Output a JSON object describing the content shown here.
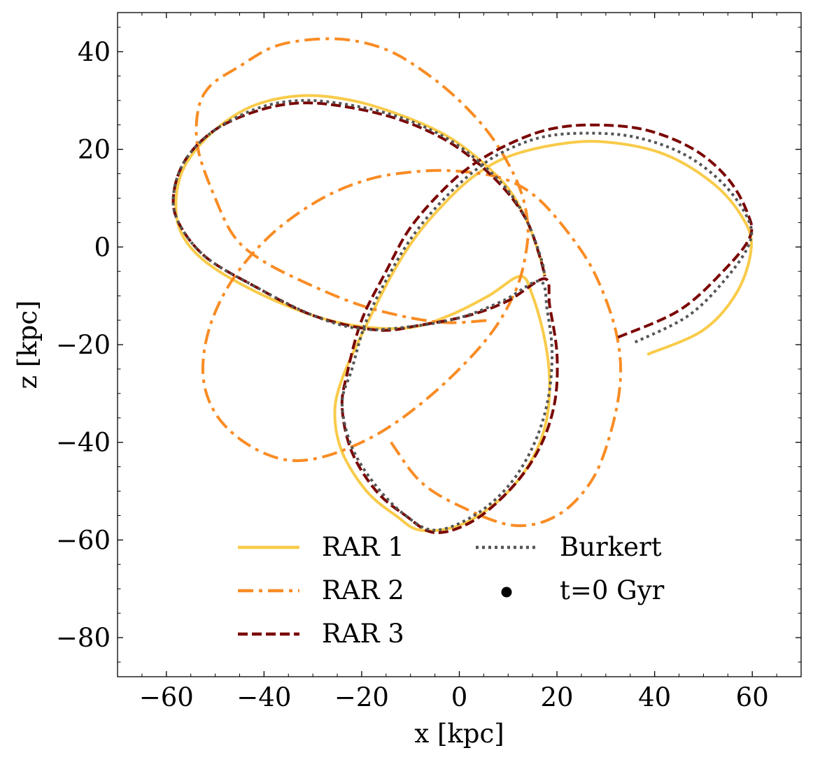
{
  "chart_data": {
    "type": "line",
    "xlabel": "x [kpc]",
    "ylabel": "z [kpc]",
    "xlim": [
      -70,
      70
    ],
    "ylim": [
      -88,
      48
    ],
    "xticks": [
      -60,
      -40,
      -20,
      0,
      20,
      40,
      60
    ],
    "xtick_labels": [
      "−60",
      "−40",
      "−20",
      "0",
      "20",
      "40",
      "60"
    ],
    "yticks": [
      -80,
      -60,
      -40,
      -20,
      0,
      20,
      40
    ],
    "ytick_labels": [
      "−80",
      "−60",
      "−40",
      "−20",
      "0",
      "20",
      "40"
    ],
    "grid": false,
    "legend_placement": "bottom-center, two columns",
    "series": [
      {
        "name": "RAR 1",
        "color": "#F9CB4A",
        "dash": "solid",
        "points": [
          [
            38.5,
            -22.0
          ],
          [
            50,
            -17
          ],
          [
            57,
            -9
          ],
          [
            59.8,
            0
          ],
          [
            58,
            6
          ],
          [
            52,
            13
          ],
          [
            42,
            19
          ],
          [
            30,
            21.5
          ],
          [
            20,
            21
          ],
          [
            10,
            18.5
          ],
          [
            3,
            14.5
          ],
          [
            -3,
            9
          ],
          [
            -9,
            2
          ],
          [
            -14,
            -6
          ],
          [
            -20,
            -18
          ],
          [
            -24,
            -27
          ],
          [
            -25.5,
            -34
          ],
          [
            -24,
            -42
          ],
          [
            -19,
            -50
          ],
          [
            -13,
            -55
          ],
          [
            -8,
            -58
          ],
          [
            0,
            -57
          ],
          [
            8,
            -52
          ],
          [
            14,
            -45
          ],
          [
            17.5,
            -37
          ],
          [
            18.5,
            -28
          ],
          [
            17.5,
            -19
          ],
          [
            15,
            -10
          ],
          [
            12.5,
            -6
          ],
          [
            6,
            -10
          ],
          [
            -2,
            -14
          ],
          [
            -10,
            -16.5
          ],
          [
            -20,
            -16.3
          ],
          [
            -30,
            -14
          ],
          [
            -42,
            -9
          ],
          [
            -52,
            -3
          ],
          [
            -57,
            3
          ],
          [
            -58,
            10
          ],
          [
            -56,
            17
          ],
          [
            -50,
            24
          ],
          [
            -42,
            29
          ],
          [
            -32,
            31
          ],
          [
            -22,
            30
          ],
          [
            -12,
            27
          ],
          [
            -3,
            23
          ],
          [
            4,
            18
          ],
          [
            10,
            12
          ],
          [
            14,
            5
          ],
          [
            16.8,
            -3
          ],
          [
            17.5,
            -6
          ]
        ]
      },
      {
        "name": "RAR 2",
        "color": "#F98C24",
        "dash": "22 8 5 8",
        "points": [
          [
            -14,
            -40
          ],
          [
            -8,
            -48
          ],
          [
            0,
            -53
          ],
          [
            11,
            -57
          ],
          [
            20,
            -55
          ],
          [
            27,
            -48
          ],
          [
            31,
            -38
          ],
          [
            33,
            -27
          ],
          [
            32,
            -17
          ],
          [
            28,
            -6
          ],
          [
            23,
            2
          ],
          [
            16,
            10
          ],
          [
            9,
            14
          ],
          [
            0,
            15.5
          ],
          [
            -8,
            15.5
          ],
          [
            -18,
            14
          ],
          [
            -28,
            10
          ],
          [
            -38,
            3
          ],
          [
            -46,
            -6
          ],
          [
            -51,
            -16
          ],
          [
            -52.5,
            -26
          ],
          [
            -50,
            -34
          ],
          [
            -44,
            -40
          ],
          [
            -36,
            -43.5
          ],
          [
            -28,
            -43
          ],
          [
            -18,
            -39
          ],
          [
            -9,
            -33
          ],
          [
            0,
            -25
          ],
          [
            7,
            -17
          ],
          [
            11.5,
            -9
          ],
          [
            13.5,
            -2
          ],
          [
            14,
            5
          ],
          [
            12,
            13
          ],
          [
            7,
            22
          ],
          [
            1,
            29
          ],
          [
            -6,
            35
          ],
          [
            -14,
            40
          ],
          [
            -22,
            42.3
          ],
          [
            -30,
            42.5
          ],
          [
            -38,
            41
          ],
          [
            -45,
            37
          ],
          [
            -51,
            33
          ],
          [
            -53.5,
            28
          ],
          [
            -53.5,
            20
          ],
          [
            -50,
            10
          ],
          [
            -46,
            2
          ],
          [
            -40,
            -3
          ],
          [
            -30,
            -8
          ],
          [
            -20,
            -12
          ],
          [
            -10,
            -14.5
          ],
          [
            -2,
            -15.5
          ],
          [
            6,
            -15
          ]
        ]
      },
      {
        "name": "RAR 3",
        "color": "#7A0604",
        "dash": "14 6",
        "points": [
          [
            32.5,
            -18.5
          ],
          [
            45,
            -13
          ],
          [
            54,
            -5
          ],
          [
            59.5,
            2
          ],
          [
            59,
            7
          ],
          [
            55,
            14
          ],
          [
            48,
            20
          ],
          [
            38,
            24
          ],
          [
            27,
            25
          ],
          [
            18,
            24
          ],
          [
            10,
            21
          ],
          [
            3,
            17
          ],
          [
            -3,
            12
          ],
          [
            -10,
            4
          ],
          [
            -15,
            -5
          ],
          [
            -20,
            -15
          ],
          [
            -23,
            -26
          ],
          [
            -24,
            -33
          ],
          [
            -22,
            -42
          ],
          [
            -17,
            -50
          ],
          [
            -11,
            -55
          ],
          [
            -5,
            -58.5
          ],
          [
            3,
            -56
          ],
          [
            11,
            -49
          ],
          [
            16.5,
            -41
          ],
          [
            19.5,
            -32
          ],
          [
            20,
            -22
          ],
          [
            18.5,
            -12
          ],
          [
            17.5,
            -6.5
          ],
          [
            10,
            -11
          ],
          [
            2,
            -14
          ],
          [
            -8,
            -16
          ],
          [
            -17,
            -17
          ],
          [
            -30,
            -14
          ],
          [
            -42,
            -8
          ],
          [
            -52,
            -2
          ],
          [
            -57.5,
            5
          ],
          [
            -58.5,
            11
          ],
          [
            -56,
            18
          ],
          [
            -50,
            24
          ],
          [
            -41,
            28
          ],
          [
            -32,
            29.5
          ],
          [
            -22,
            28.5
          ],
          [
            -12,
            26
          ],
          [
            -3,
            22
          ],
          [
            4,
            17
          ],
          [
            10,
            11
          ],
          [
            14,
            5
          ],
          [
            16.5,
            -2
          ],
          [
            17.5,
            -6
          ]
        ]
      },
      {
        "name": "Burkert",
        "color": "#555555",
        "dash": "4 5",
        "points": [
          [
            36,
            -19.5
          ],
          [
            47,
            -14
          ],
          [
            55,
            -6
          ],
          [
            59.5,
            1
          ],
          [
            59,
            6
          ],
          [
            54,
            13
          ],
          [
            46,
            19
          ],
          [
            36,
            22.5
          ],
          [
            26,
            23.3
          ],
          [
            17,
            22.5
          ],
          [
            9,
            19.5
          ],
          [
            3,
            15.5
          ],
          [
            -3,
            10
          ],
          [
            -9,
            3
          ],
          [
            -14,
            -5
          ],
          [
            -19,
            -15
          ],
          [
            -22,
            -25
          ],
          [
            -24,
            -32
          ],
          [
            -22,
            -41
          ],
          [
            -17,
            -49
          ],
          [
            -11,
            -55
          ],
          [
            -5,
            -58
          ],
          [
            3,
            -55
          ],
          [
            10,
            -49
          ],
          [
            15,
            -41
          ],
          [
            18,
            -32
          ],
          [
            19,
            -22
          ],
          [
            18,
            -13
          ],
          [
            16.5,
            -7
          ],
          [
            9,
            -11
          ],
          [
            0,
            -14.5
          ],
          [
            -10,
            -16.3
          ],
          [
            -20,
            -16.8
          ],
          [
            -30,
            -14
          ],
          [
            -42,
            -8
          ],
          [
            -52,
            -2
          ],
          [
            -57.5,
            5
          ],
          [
            -58.5,
            11
          ],
          [
            -56,
            18
          ],
          [
            -50,
            24
          ],
          [
            -41,
            28.5
          ],
          [
            -32,
            30
          ],
          [
            -22,
            29
          ],
          [
            -12,
            26.5
          ],
          [
            -3,
            22.5
          ],
          [
            4,
            17.5
          ],
          [
            10,
            11.5
          ],
          [
            14,
            5
          ],
          [
            16.8,
            -2.5
          ],
          [
            17.5,
            -6
          ]
        ]
      }
    ],
    "marker": {
      "name": "t=0 Gyr",
      "color": "#000000"
    }
  }
}
